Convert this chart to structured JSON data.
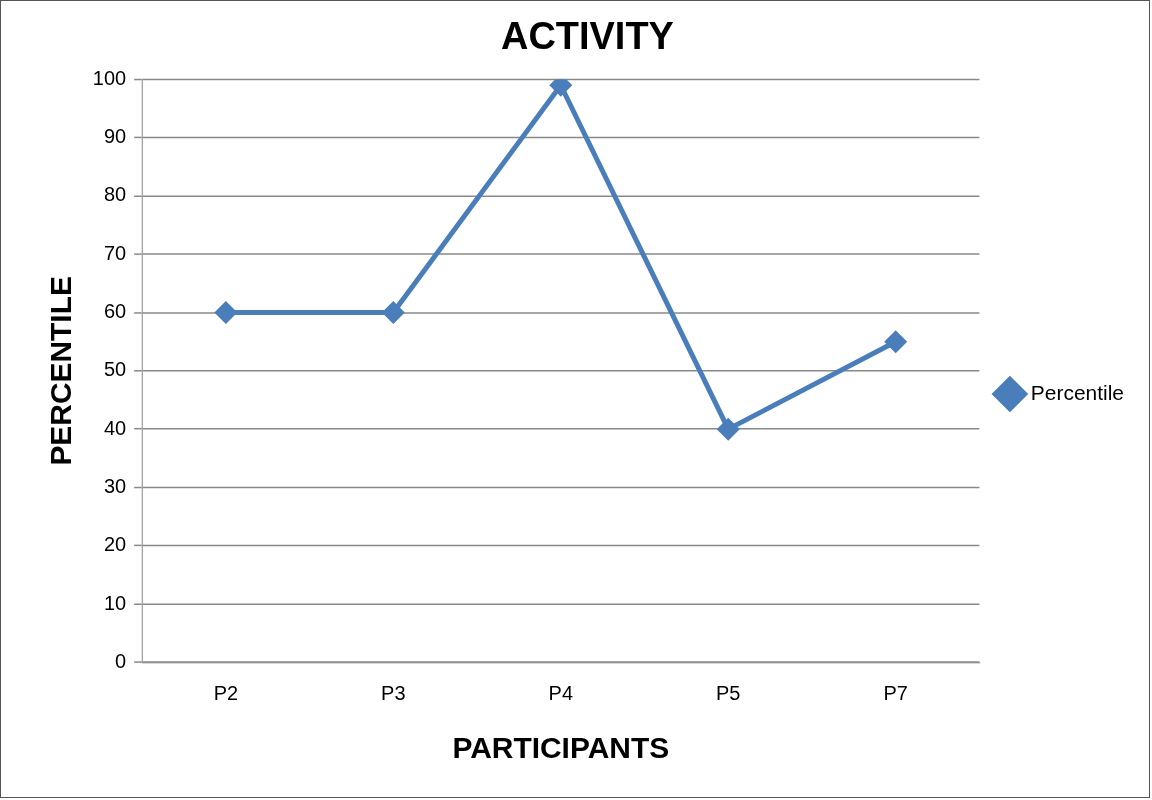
{
  "chart_data": {
    "type": "line",
    "title": "ACTIVITY",
    "xlabel": "PARTICIPANTS",
    "ylabel": "PERCENTILE",
    "categories": [
      "P2",
      "P3",
      "P4",
      "P5",
      "P7"
    ],
    "series": [
      {
        "name": "Percentile",
        "color": "#4a7ebb",
        "values": [
          60,
          60,
          99,
          40,
          55
        ]
      }
    ],
    "ylim": [
      0,
      100
    ],
    "yticks": [
      0,
      10,
      20,
      30,
      40,
      50,
      60,
      70,
      80,
      90,
      100
    ],
    "grid": "y",
    "legend": "right",
    "marker": "diamond",
    "line_style": "solid"
  }
}
